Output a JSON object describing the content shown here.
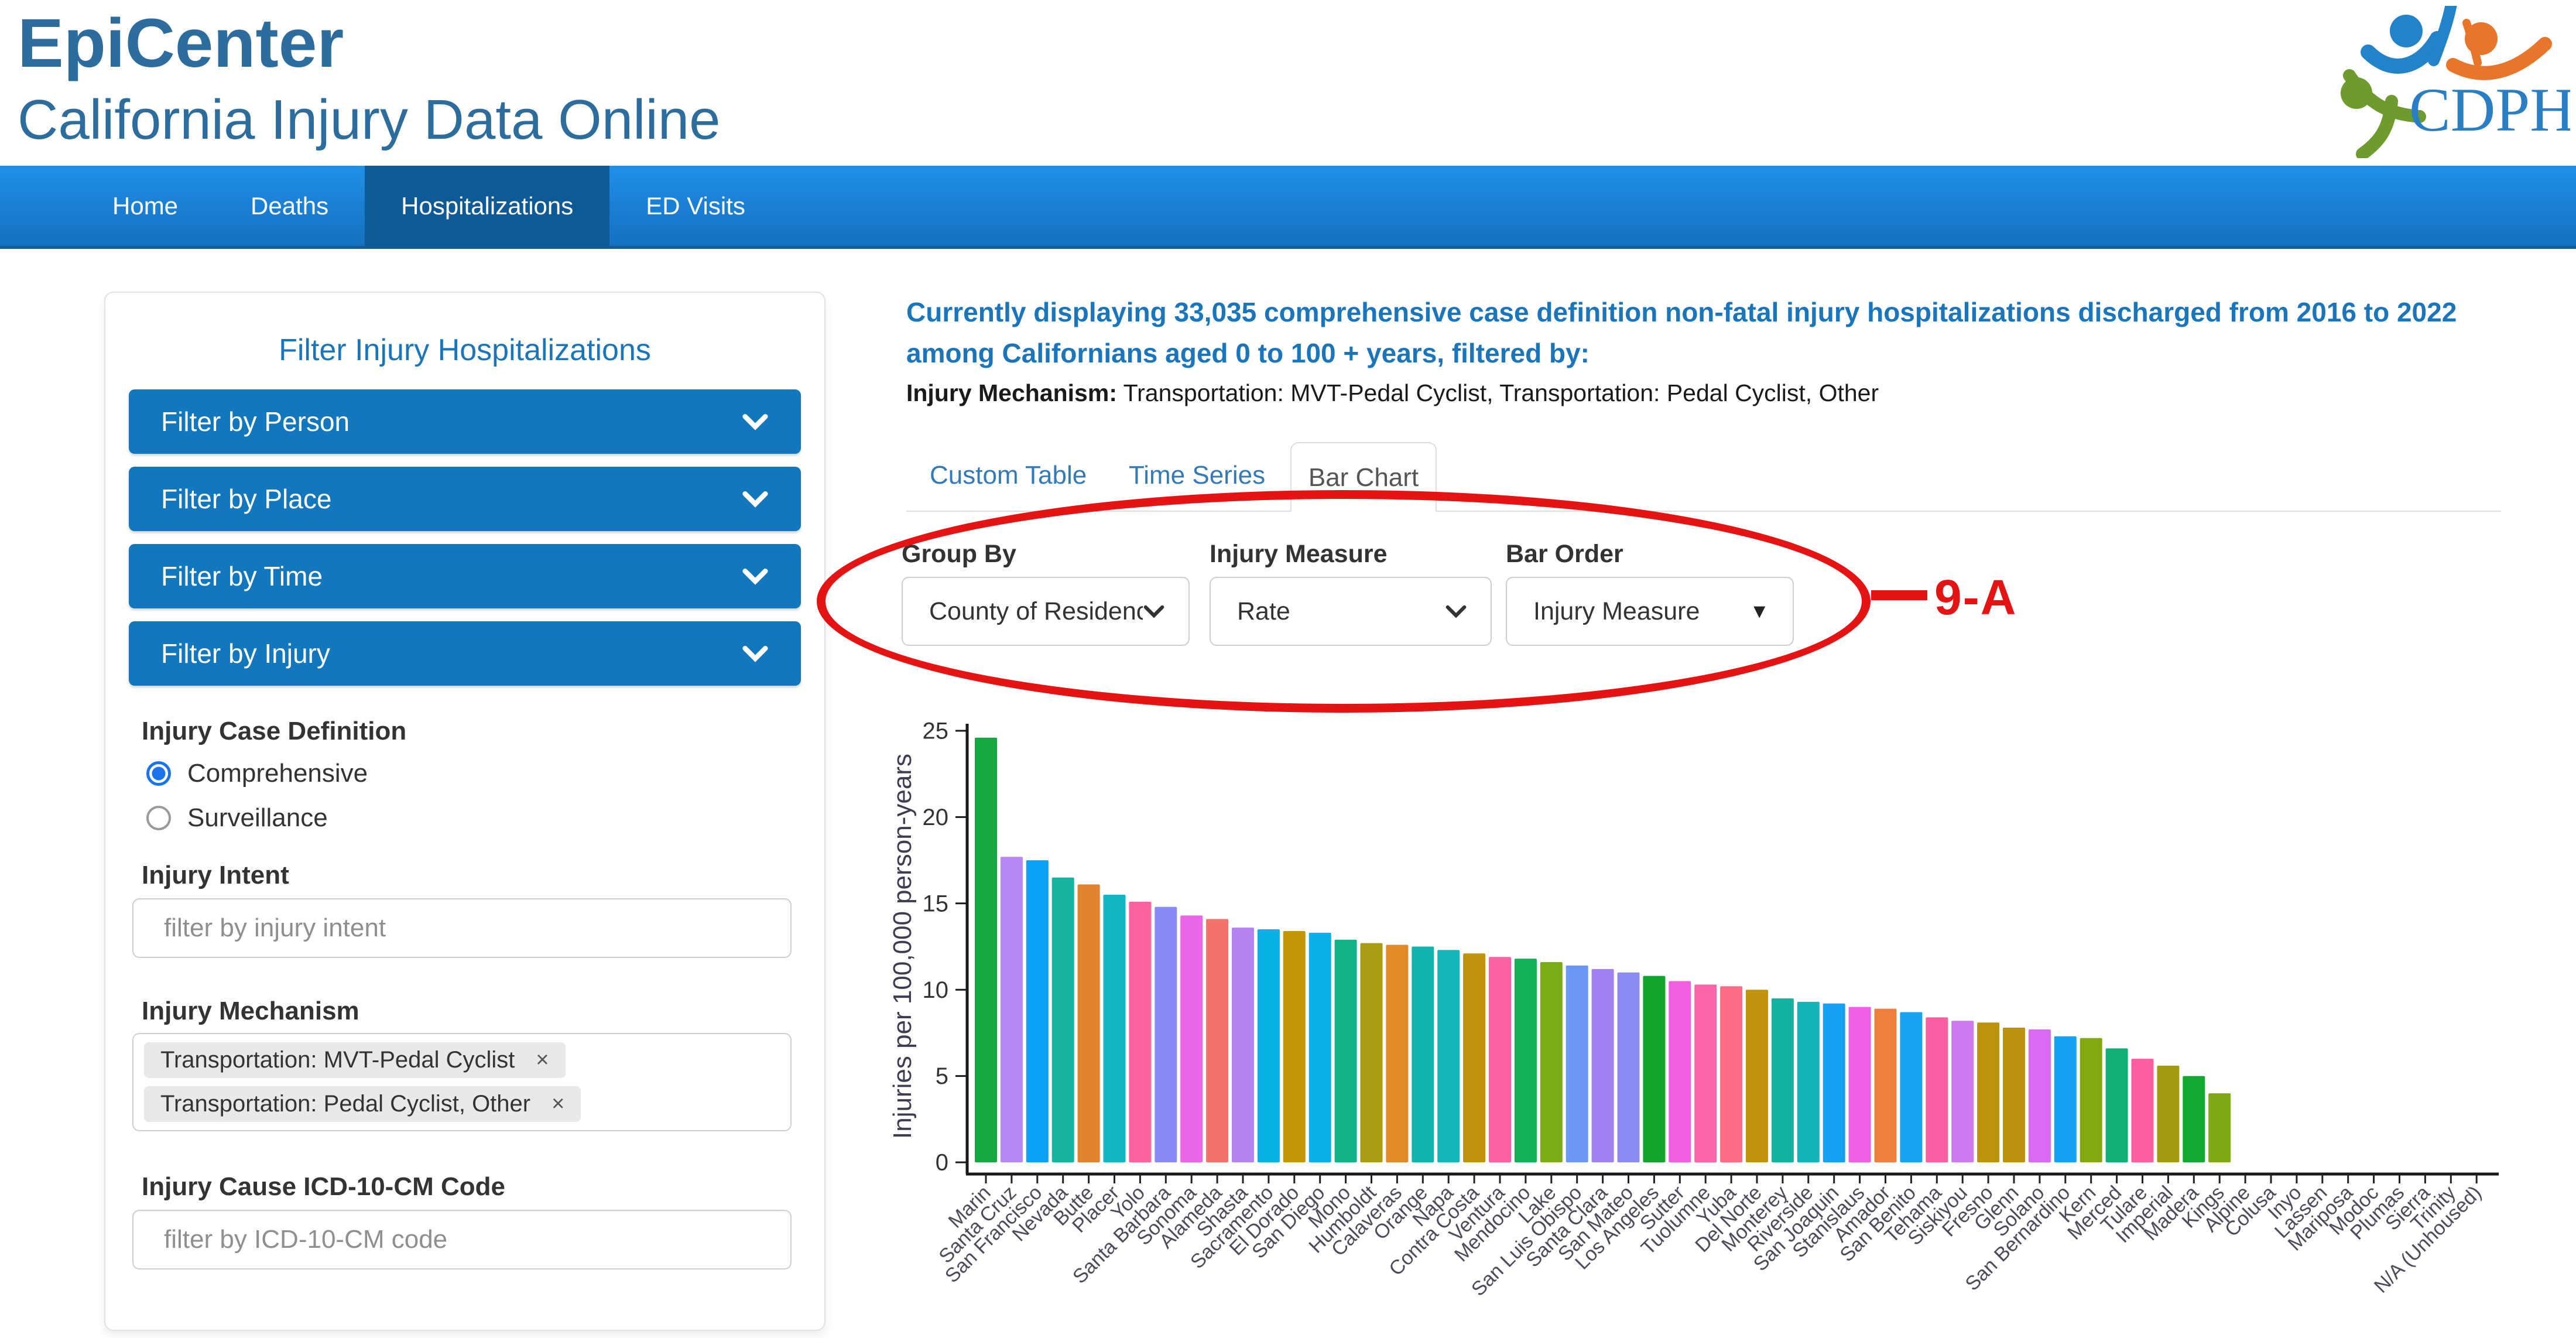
{
  "header": {
    "title": "EpiCenter",
    "subtitle": "California Injury Data Online",
    "logo_text": "CDPH"
  },
  "nav": {
    "items": [
      {
        "label": "Home",
        "active": false
      },
      {
        "label": "Deaths",
        "active": false
      },
      {
        "label": "Hospitalizations",
        "active": true
      },
      {
        "label": "ED Visits",
        "active": false
      }
    ]
  },
  "sidebar": {
    "title": "Filter Injury Hospitalizations",
    "accordions": [
      {
        "label": "Filter by Person",
        "expanded": false
      },
      {
        "label": "Filter by Place",
        "expanded": false
      },
      {
        "label": "Filter by Time",
        "expanded": false
      },
      {
        "label": "Filter by Injury",
        "expanded": true
      }
    ],
    "case_definition": {
      "label": "Injury Case Definition",
      "options": [
        {
          "label": "Comprehensive",
          "selected": true
        },
        {
          "label": "Surveillance",
          "selected": false
        }
      ]
    },
    "injury_intent": {
      "label": "Injury Intent",
      "placeholder": "filter by injury intent"
    },
    "injury_mechanism": {
      "label": "Injury Mechanism",
      "tags": [
        "Transportation: MVT-Pedal Cyclist",
        "Transportation: Pedal Cyclist, Other"
      ],
      "remove_icon": "×"
    },
    "icd_code": {
      "label": "Injury Cause ICD-10-CM Code",
      "placeholder": "filter by ICD-10-CM code"
    }
  },
  "main": {
    "summary": "Currently displaying 33,035 comprehensive case definition non-fatal injury hospitalizations discharged from 2016 to 2022 among Californians aged 0 to 100 + years, filtered by:",
    "filter_line_label": "Injury Mechanism:",
    "filter_line_value": " Transportation: MVT-Pedal Cyclist, Transportation: Pedal Cyclist, Other",
    "tabs": [
      {
        "label": "Custom Table",
        "active": false
      },
      {
        "label": "Time Series",
        "active": false
      },
      {
        "label": "Bar Chart",
        "active": true
      }
    ],
    "controls": [
      {
        "label": "Group By",
        "value": "County of Residence",
        "style": "select"
      },
      {
        "label": "Injury Measure",
        "value": "Rate",
        "style": "select"
      },
      {
        "label": "Bar Order",
        "value": "Injury Measure",
        "style": "dropdown"
      }
    ],
    "annotation": {
      "label": "9-A",
      "color": "#e51414"
    }
  },
  "colors": {
    "accent_blue": "#1377bd",
    "header_text": "#2d6d9e",
    "summary_blue": "#1b75bb",
    "link_blue": "#337ab7",
    "nav_top": "#1f90e8",
    "nav_bottom": "#1570c0",
    "nav_active": "#0e5a97",
    "annotation_red": "#e51414",
    "radio_selected": "#1a73e8"
  },
  "chart_data": {
    "type": "bar",
    "title": "",
    "xlabel": "",
    "ylabel": "Injuries per 100,000 person-years",
    "ylim": [
      0,
      25
    ],
    "yticks": [
      0,
      5,
      10,
      15,
      20,
      25
    ],
    "grid": false,
    "legend": false,
    "categories": [
      "Marin",
      "Santa Cruz",
      "San Francisco",
      "Nevada",
      "Butte",
      "Placer",
      "Yolo",
      "Santa Barbara",
      "Sonoma",
      "Alameda",
      "Shasta",
      "Sacramento",
      "El Dorado",
      "San Diego",
      "Mono",
      "Humboldt",
      "Calaveras",
      "Orange",
      "Napa",
      "Contra Costa",
      "Ventura",
      "Mendocino",
      "Lake",
      "San Luis Obispo",
      "Santa Clara",
      "San Mateo",
      "Los Angeles",
      "Sutter",
      "Tuolumne",
      "Yuba",
      "Del Norte",
      "Monterey",
      "Riverside",
      "San Joaquin",
      "Stanislaus",
      "Amador",
      "San Benito",
      "Tehama",
      "Siskiyou",
      "Fresno",
      "Glenn",
      "Solano",
      "San Bernardino",
      "Kern",
      "Merced",
      "Tulare",
      "Imperial",
      "Madera",
      "Kings",
      "Alpine",
      "Colusa",
      "Inyo",
      "Lassen",
      "Mariposa",
      "Modoc",
      "Plumas",
      "Sierra",
      "Trinity",
      "N/A (Unhoused)"
    ],
    "values": [
      24.6,
      17.7,
      17.5,
      16.5,
      16.1,
      15.5,
      15.1,
      14.8,
      14.3,
      14.1,
      13.6,
      13.5,
      13.4,
      13.3,
      12.9,
      12.7,
      12.6,
      12.5,
      12.3,
      12.1,
      11.9,
      11.8,
      11.6,
      11.4,
      11.2,
      11.0,
      10.8,
      10.5,
      10.3,
      10.2,
      10.0,
      9.5,
      9.3,
      9.2,
      9.0,
      8.9,
      8.7,
      8.4,
      8.2,
      8.1,
      7.8,
      7.7,
      7.3,
      7.2,
      6.6,
      6.0,
      5.6,
      5.0,
      4.0,
      null,
      null,
      null,
      null,
      null,
      null,
      null,
      null,
      null,
      null
    ],
    "colors": [
      "#17a843",
      "#b388f5",
      "#0aa2f4",
      "#16b49e",
      "#e2832f",
      "#10b7c2",
      "#fa639e",
      "#8a8af5",
      "#e966e6",
      "#f2726e",
      "#b583f0",
      "#08b2e2",
      "#c29708",
      "#0aaee8",
      "#13b286",
      "#a99b14",
      "#e08a28",
      "#14b4ae",
      "#17b5bc",
      "#c2930d",
      "#fb63a4",
      "#12b058",
      "#7aac16",
      "#6b97f7",
      "#a181f2",
      "#8b8bf2",
      "#14a42e",
      "#f15fe0",
      "#fb64a6",
      "#fb6c87",
      "#c1920e",
      "#14b2a2",
      "#13b4ba",
      "#16a0f4",
      "#ee5fe3",
      "#ee7f3c",
      "#16a4f3",
      "#fb5fa3",
      "#cb7af2",
      "#bb930f",
      "#bb9110",
      "#da6af2",
      "#16a2f3",
      "#84a811",
      "#12b077",
      "#fb5fa0",
      "#a29b12",
      "#13a831",
      "#7fa813",
      null,
      null,
      null,
      null,
      null,
      null,
      null,
      null,
      null,
      null
    ]
  }
}
